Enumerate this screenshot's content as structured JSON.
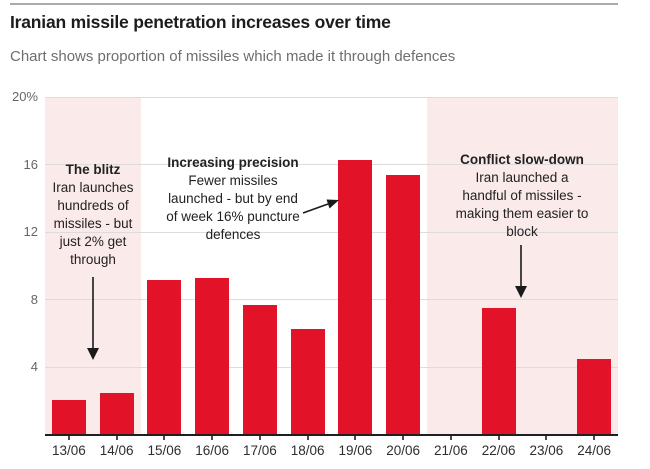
{
  "header": {
    "title": "Iranian missile penetration increases over time",
    "subtitle": "Chart shows proportion of missiles which made it through defences"
  },
  "chart_data": {
    "type": "bar",
    "title": "Iranian missile penetration increases over time",
    "subtitle": "Chart shows proportion of missiles which made it through defences",
    "xlabel": "",
    "ylabel": "",
    "categories": [
      "13/06",
      "14/06",
      "15/06",
      "16/06",
      "17/06",
      "18/06",
      "19/06",
      "20/06",
      "21/06",
      "22/06",
      "23/06",
      "24/06"
    ],
    "values": [
      2.1,
      2.5,
      9.2,
      9.3,
      7.7,
      6.3,
      16.3,
      15.4,
      0,
      7.5,
      0,
      4.5
    ],
    "ylim": [
      0,
      20
    ],
    "yticks": [
      {
        "v": 20,
        "label": "20%"
      },
      {
        "v": 16,
        "label": "16"
      },
      {
        "v": 12,
        "label": "12"
      },
      {
        "v": 8,
        "label": "8"
      },
      {
        "v": 4,
        "label": "4"
      }
    ],
    "grid": "horizontal",
    "legend": "none",
    "bar_color": "#e21228",
    "shaded_band_color": "#faeaea",
    "shaded_regions": [
      {
        "from": "13/06",
        "to": "14/06"
      },
      {
        "from": "21/06",
        "to": "24/06"
      }
    ],
    "annotations": [
      {
        "id": "blitz",
        "title": "The blitz",
        "body": "Iran launches\nhundreds of\nmissiles - but\njust 2% get\nthrough",
        "arrow": "down"
      },
      {
        "id": "precision",
        "title": "Increasing precision",
        "body": "Fewer missiles\nlaunched - but by end\nof week 16% puncture\ndefences",
        "arrow": "right"
      },
      {
        "id": "slowdown",
        "title": "Conflict slow-down",
        "body": "Iran launched a\nhandful of missiles -\nmaking them easier to\nblock",
        "arrow": "down"
      }
    ]
  }
}
